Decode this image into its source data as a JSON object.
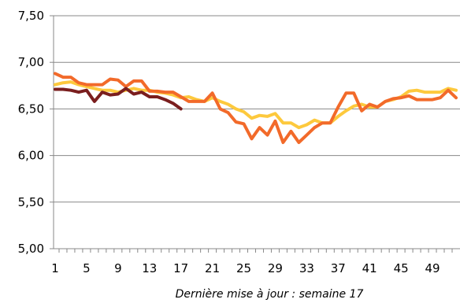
{
  "footnote": "Dernière mise à jour : semaine 17",
  "chart_data": {
    "type": "line",
    "ylim": [
      5.0,
      7.5
    ],
    "yticks": [
      "5,00",
      "5,50",
      "6,00",
      "6,50",
      "7,00",
      "7,50"
    ],
    "ytick_values": [
      5.0,
      5.5,
      6.0,
      6.5,
      7.0,
      7.5
    ],
    "xlim": [
      1,
      52
    ],
    "xtick_labels": [
      "1",
      "5",
      "9",
      "13",
      "17",
      "21",
      "25",
      "29",
      "33",
      "37",
      "41",
      "45",
      "49"
    ],
    "xtick_values": [
      1,
      5,
      9,
      13,
      17,
      21,
      25,
      29,
      33,
      37,
      41,
      45,
      49
    ],
    "grid": "horizontal",
    "series": [
      {
        "color": "#FDC93D",
        "x": [
          1,
          2,
          3,
          4,
          5,
          6,
          7,
          8,
          9,
          10,
          11,
          12,
          13,
          14,
          15,
          16,
          17,
          18,
          19,
          20,
          21,
          22,
          23,
          24,
          25,
          26,
          27,
          28,
          29,
          30,
          31,
          32,
          33,
          34,
          35,
          36,
          37,
          38,
          39,
          40,
          41,
          42,
          43,
          44,
          45,
          46,
          47,
          48,
          49,
          50,
          51,
          52
        ],
        "values": [
          6.76,
          6.78,
          6.79,
          6.76,
          6.74,
          6.72,
          6.7,
          6.7,
          6.68,
          6.7,
          6.72,
          6.7,
          6.7,
          6.68,
          6.67,
          6.65,
          6.62,
          6.63,
          6.6,
          6.58,
          6.62,
          6.58,
          6.55,
          6.5,
          6.47,
          6.4,
          6.43,
          6.42,
          6.45,
          6.35,
          6.35,
          6.3,
          6.33,
          6.38,
          6.35,
          6.35,
          6.42,
          6.48,
          6.53,
          6.55,
          6.52,
          6.52,
          6.58,
          6.6,
          6.63,
          6.69,
          6.7,
          6.68,
          6.68,
          6.68,
          6.72,
          6.7
        ]
      },
      {
        "color": "#F26A2A",
        "x": [
          1,
          2,
          3,
          4,
          5,
          6,
          7,
          8,
          9,
          10,
          11,
          12,
          13,
          14,
          15,
          16,
          17,
          18,
          19,
          20,
          21,
          22,
          23,
          24,
          25,
          26,
          27,
          28,
          29,
          30,
          31,
          32,
          33,
          34,
          35,
          36,
          37,
          38,
          39,
          40,
          41,
          42,
          43,
          44,
          45,
          46,
          47,
          48,
          49,
          50,
          51,
          52
        ],
        "values": [
          6.88,
          6.84,
          6.84,
          6.78,
          6.76,
          6.76,
          6.76,
          6.82,
          6.81,
          6.74,
          6.8,
          6.8,
          6.69,
          6.69,
          6.68,
          6.68,
          6.63,
          6.58,
          6.58,
          6.58,
          6.67,
          6.5,
          6.46,
          6.36,
          6.34,
          6.18,
          6.3,
          6.22,
          6.37,
          6.14,
          6.26,
          6.14,
          6.22,
          6.3,
          6.35,
          6.35,
          6.52,
          6.67,
          6.67,
          6.48,
          6.55,
          6.52,
          6.58,
          6.61,
          6.62,
          6.64,
          6.6,
          6.6,
          6.6,
          6.62,
          6.7,
          6.62
        ]
      },
      {
        "color": "#7A1E1E",
        "x": [
          1,
          2,
          3,
          4,
          5,
          6,
          7,
          8,
          9,
          10,
          11,
          12,
          13,
          14,
          15,
          16,
          17
        ],
        "values": [
          6.71,
          6.71,
          6.7,
          6.68,
          6.7,
          6.58,
          6.68,
          6.65,
          6.66,
          6.72,
          6.66,
          6.68,
          6.63,
          6.63,
          6.6,
          6.56,
          6.5
        ]
      }
    ]
  }
}
